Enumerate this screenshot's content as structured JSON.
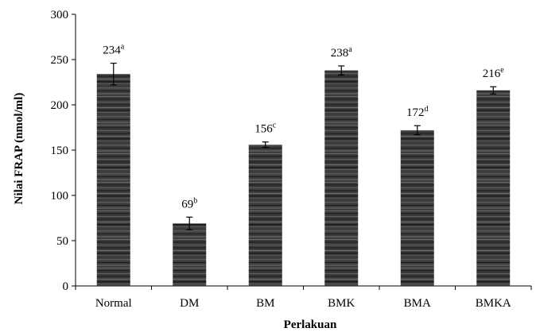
{
  "chart_data": {
    "type": "bar",
    "xlabel": "Perlakuan",
    "ylabel": "Nilai FRAP (nmol/ml)",
    "categories": [
      "Normal",
      "DM",
      "BM",
      "BMK",
      "BMA",
      "BMKA"
    ],
    "values": [
      234,
      69,
      156,
      238,
      172,
      216
    ],
    "errors": [
      12,
      7,
      3,
      5,
      5,
      4
    ],
    "labels": [
      "234",
      "69",
      "156",
      "238",
      "172",
      "216"
    ],
    "superscripts": [
      "a",
      "b",
      "c",
      "a",
      "d",
      "e"
    ],
    "ylim": [
      0,
      300
    ],
    "yticks": [
      0,
      50,
      100,
      150,
      200,
      250,
      300
    ],
    "grid": false,
    "legend": "none",
    "bar_color": "#3a3a3a"
  }
}
